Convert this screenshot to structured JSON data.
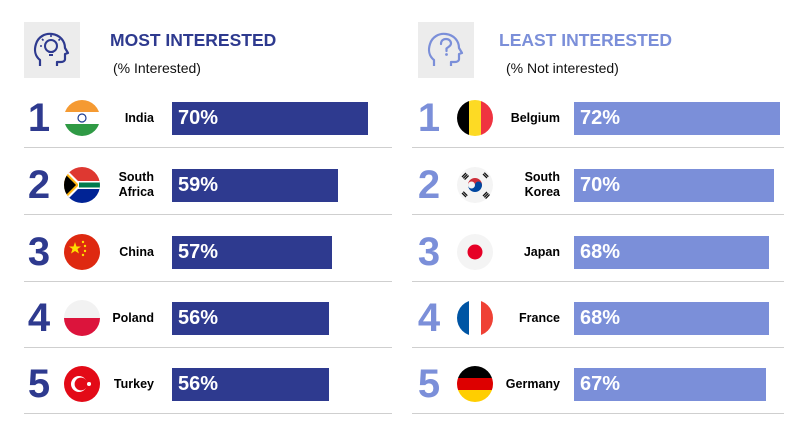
{
  "colors": {
    "most_accent": "#2e3a8f",
    "least_accent": "#7b8fd9",
    "divider": "#cfcfcf",
    "icon_bg": "#ececec"
  },
  "most": {
    "icon": "head-lightbulb-icon",
    "title": "MOST INTERESTED",
    "subtitle": "(% Interested)",
    "items": [
      {
        "rank": "1",
        "country": "India",
        "value_label": "70%",
        "flag_icon": "india-flag-icon"
      },
      {
        "rank": "2",
        "country": "South Africa",
        "value_label": "59%",
        "flag_icon": "south-africa-flag-icon"
      },
      {
        "rank": "3",
        "country": "China",
        "value_label": "57%",
        "flag_icon": "china-flag-icon"
      },
      {
        "rank": "4",
        "country": "Poland",
        "value_label": "56%",
        "flag_icon": "poland-flag-icon"
      },
      {
        "rank": "5",
        "country": "Turkey",
        "value_label": "56%",
        "flag_icon": "turkey-flag-icon"
      }
    ]
  },
  "least": {
    "icon": "head-question-icon",
    "title": "LEAST INTERESTED",
    "subtitle": "(% Not interested)",
    "items": [
      {
        "rank": "1",
        "country": "Belgium",
        "value_label": "72%",
        "flag_icon": "belgium-flag-icon"
      },
      {
        "rank": "2",
        "country": "South Korea",
        "value_label": "70%",
        "flag_icon": "south-korea-flag-icon"
      },
      {
        "rank": "3",
        "country": "Japan",
        "value_label": "68%",
        "flag_icon": "japan-flag-icon"
      },
      {
        "rank": "4",
        "country": "France",
        "value_label": "68%",
        "flag_icon": "france-flag-icon"
      },
      {
        "rank": "5",
        "country": "Germany",
        "value_label": "67%",
        "flag_icon": "germany-flag-icon"
      }
    ]
  },
  "chart_data": [
    {
      "type": "bar",
      "title": "MOST INTERESTED",
      "subtitle": "(% Interested)",
      "categories": [
        "India",
        "South Africa",
        "China",
        "Poland",
        "Turkey"
      ],
      "values": [
        70,
        59,
        57,
        56,
        56
      ],
      "ylim": [
        0,
        72
      ]
    },
    {
      "type": "bar",
      "title": "LEAST INTERESTED",
      "subtitle": "(% Not interested)",
      "categories": [
        "Belgium",
        "South Korea",
        "Japan",
        "France",
        "Germany"
      ],
      "values": [
        72,
        70,
        68,
        68,
        67
      ],
      "ylim": [
        0,
        72
      ]
    }
  ]
}
